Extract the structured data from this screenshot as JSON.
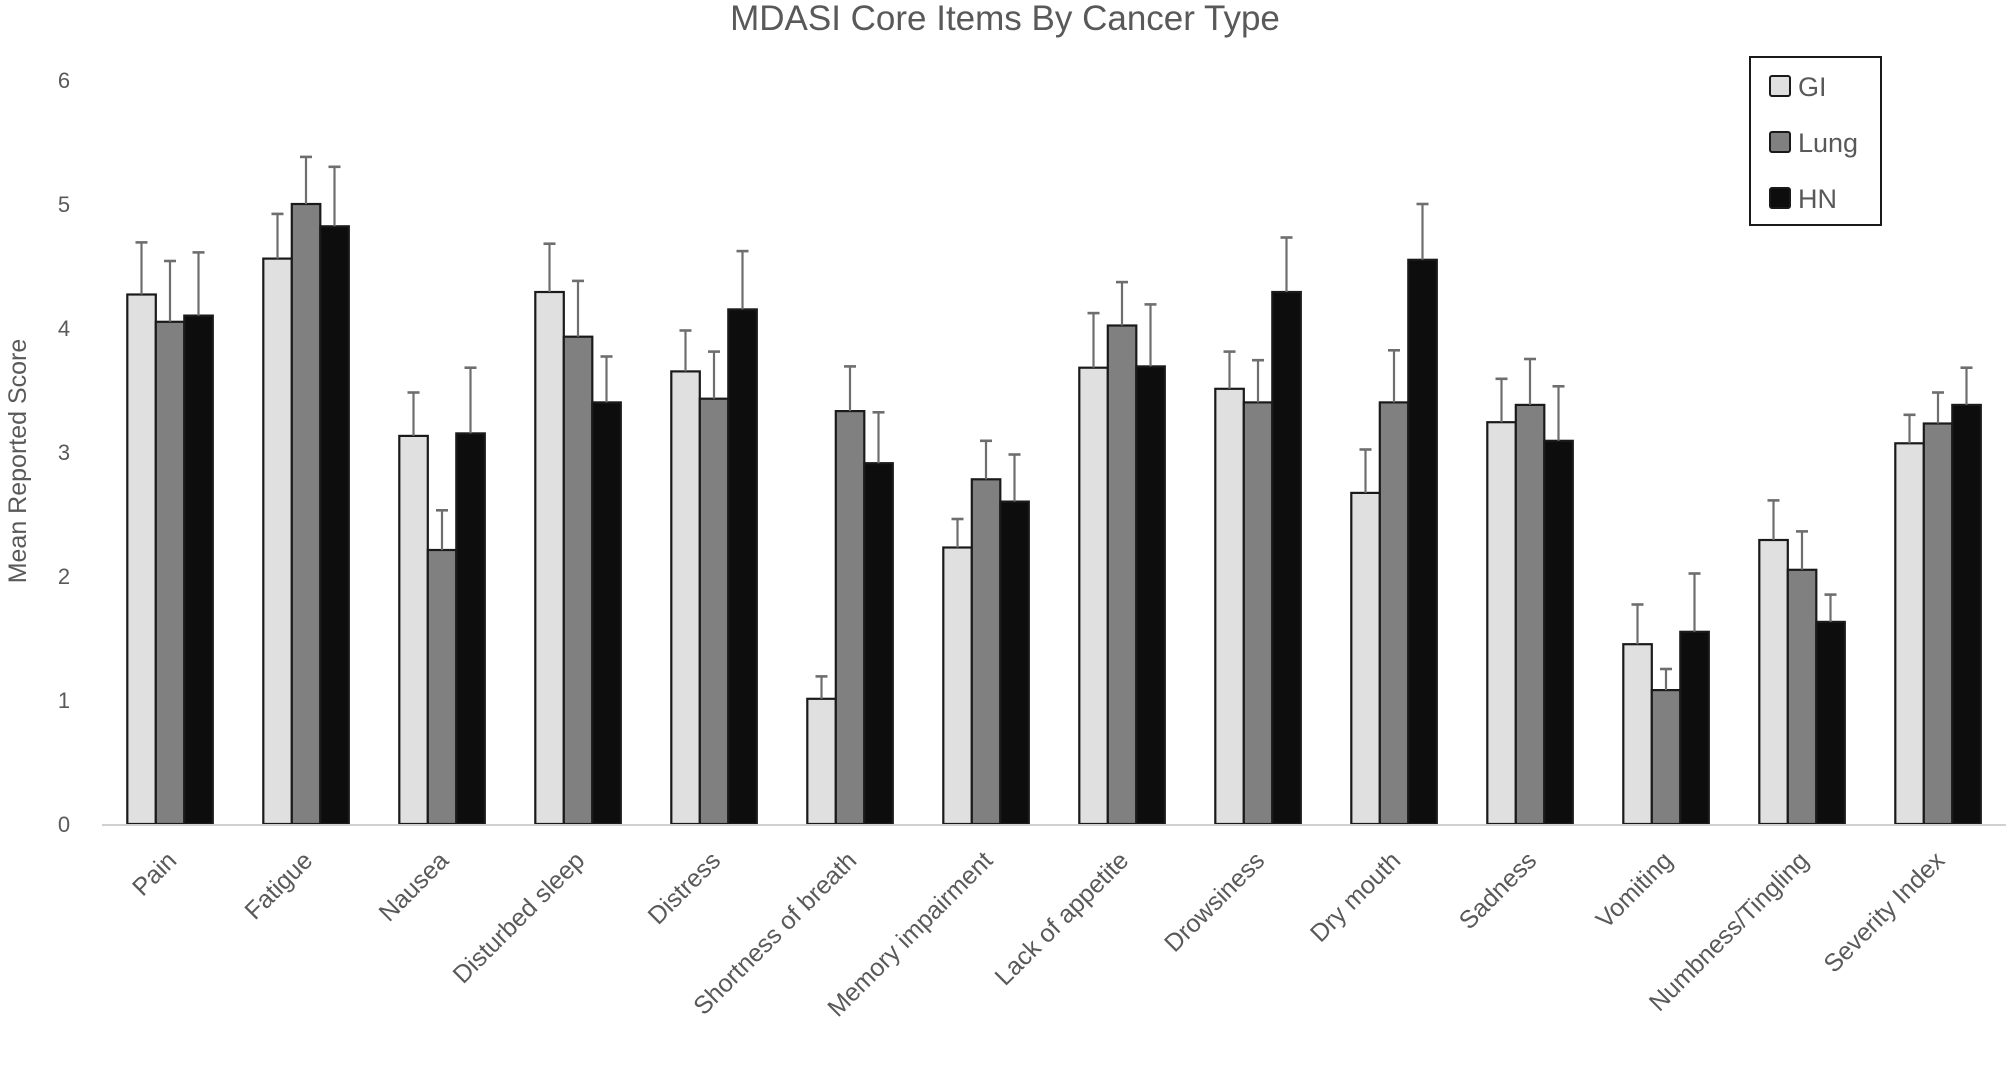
{
  "chart_data": {
    "type": "bar",
    "title": "MDASI Core Items By Cancer Type",
    "xlabel": "",
    "ylabel": "Mean Reported Score",
    "ylim": [
      0,
      6
    ],
    "yticks": [
      0,
      1,
      2,
      3,
      4,
      5,
      6
    ],
    "grid": false,
    "legend_position": "top-right",
    "categories": [
      "Pain",
      "Fatigue",
      "Nausea",
      "Disturbed sleep",
      "Distress",
      "Shortness of breath",
      "Memory impairment",
      "Lack of appetite",
      "Drowsiness",
      "Dry mouth",
      "Sadness",
      "Vomiting",
      "Numbness/Tingling",
      "Severity Index"
    ],
    "series": [
      {
        "name": "GI",
        "color": "#e0e0e0",
        "values": [
          4.27,
          4.56,
          3.13,
          4.29,
          3.65,
          1.01,
          2.23,
          3.68,
          3.51,
          2.67,
          3.24,
          1.45,
          2.29,
          3.07
        ],
        "error_upper": [
          4.69,
          4.92,
          3.48,
          4.68,
          3.98,
          1.19,
          2.46,
          4.12,
          3.81,
          3.02,
          3.59,
          1.77,
          2.61,
          3.3
        ]
      },
      {
        "name": "Lung",
        "color": "#808080",
        "values": [
          4.05,
          5.0,
          2.21,
          3.93,
          3.43,
          3.33,
          2.78,
          4.02,
          3.4,
          3.4,
          3.38,
          1.08,
          2.05,
          3.23
        ],
        "error_upper": [
          4.54,
          5.38,
          2.53,
          4.38,
          3.81,
          3.69,
          3.09,
          4.37,
          3.74,
          3.82,
          3.75,
          1.25,
          2.36,
          3.48
        ]
      },
      {
        "name": "HN",
        "color": "#0d0d0d",
        "values": [
          4.1,
          4.82,
          3.15,
          3.4,
          4.15,
          2.91,
          2.6,
          3.69,
          4.29,
          4.55,
          3.09,
          1.55,
          1.63,
          3.38
        ],
        "error_upper": [
          4.61,
          5.3,
          3.68,
          3.77,
          4.62,
          3.32,
          2.98,
          4.19,
          4.73,
          5.0,
          3.53,
          2.02,
          1.85,
          3.68
        ]
      }
    ]
  }
}
